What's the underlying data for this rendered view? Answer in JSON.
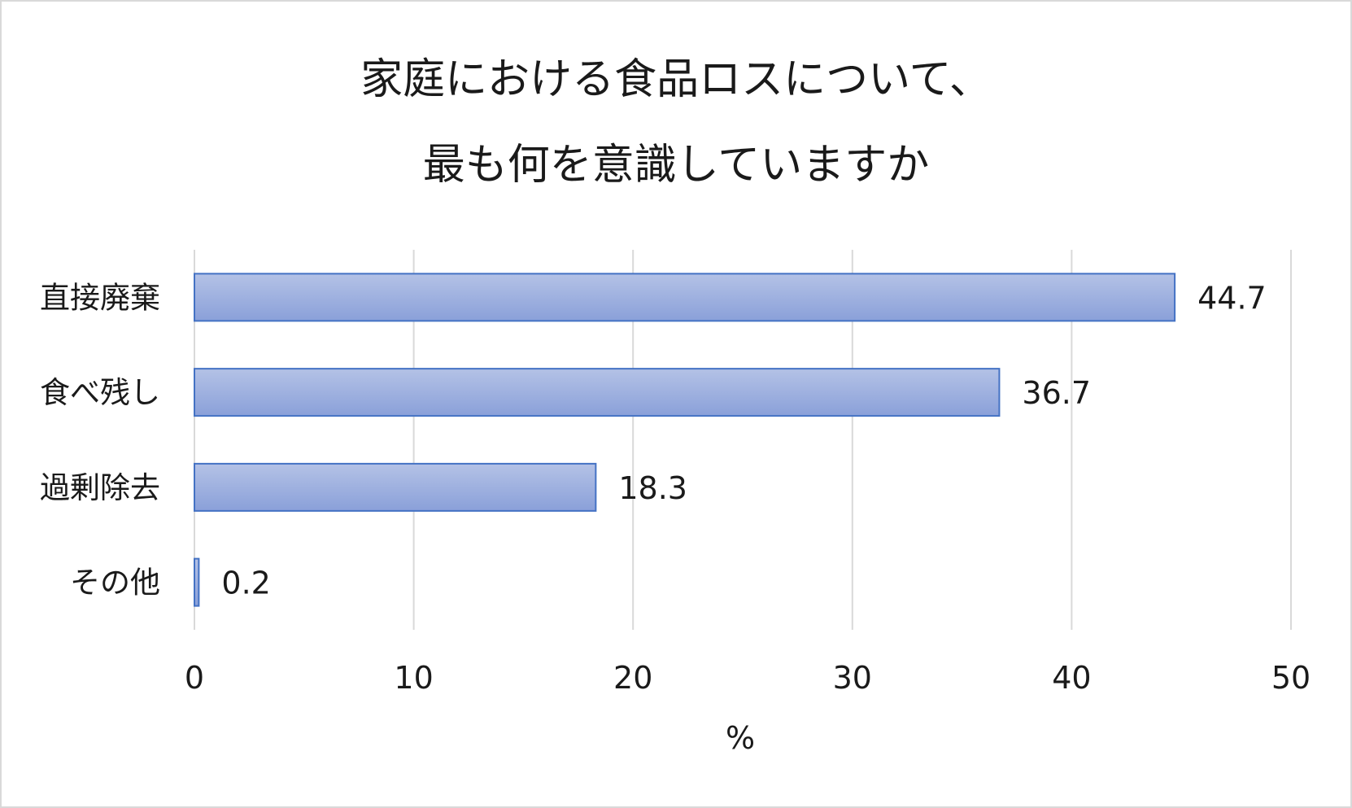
{
  "chart_data": {
    "type": "bar",
    "orientation": "horizontal",
    "title": [
      "家庭における食品ロスについて、",
      "最も何を意識していますか"
    ],
    "categories": [
      "直接廃棄",
      "食べ残し",
      "過剰除去",
      "その他"
    ],
    "values": [
      44.7,
      36.7,
      18.3,
      0.2
    ],
    "data_labels": [
      "44.7",
      "36.7",
      "18.3",
      "0.2"
    ],
    "xlabel": "%",
    "ylabel": "",
    "xlim": [
      0,
      50
    ],
    "xticks": [
      0,
      10,
      20,
      30,
      40,
      50
    ],
    "grid": true,
    "legend": "none",
    "colors": {
      "bar_fill_top": "#b4c2e6",
      "bar_fill_bottom": "#8aa0d9",
      "bar_stroke": "#4472c4",
      "grid": "#d9d9d9",
      "text": "#1a1a1a"
    }
  }
}
